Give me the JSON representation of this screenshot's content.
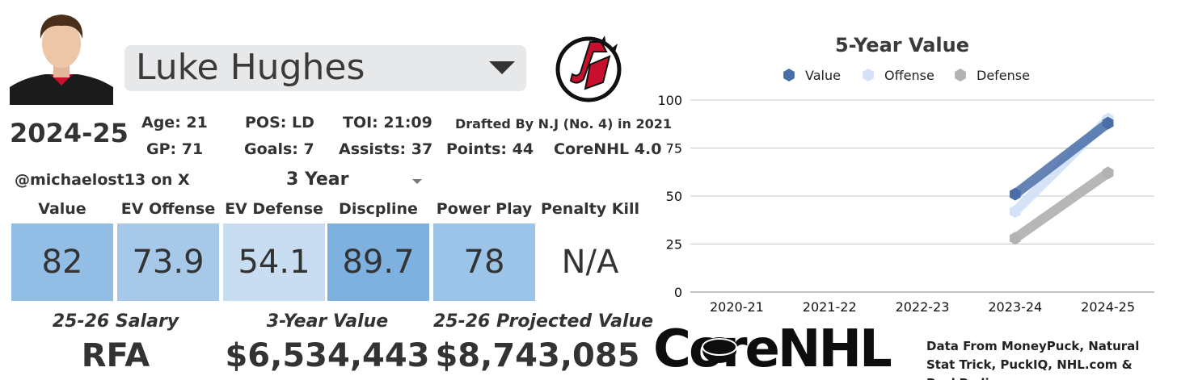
{
  "player": {
    "name": "Luke Hughes",
    "season": "2024-25",
    "handle": "@michaelost13 on X"
  },
  "stats": {
    "age": "Age: 21",
    "pos": "POS: LD",
    "toi": "TOI: 21:09",
    "drafted": "Drafted By N.J (No. 4) in 2021",
    "gp": "GP: 71",
    "goals": "Goals: 7",
    "assists": "Assists: 37",
    "points": "Points: 44",
    "version": "CoreNHL 4.0"
  },
  "window": {
    "label": "3 Year"
  },
  "metrics": [
    {
      "label": "Value",
      "value": "82",
      "color": "#92bde4"
    },
    {
      "label": "EV Offense",
      "value": "73.9",
      "color": "#a6c9ea"
    },
    {
      "label": "EV Defense",
      "value": "54.1",
      "color": "#c9ddf2"
    },
    {
      "label": "Discpline",
      "value": "89.7",
      "color": "#7eb1df"
    },
    {
      "label": "Power Play",
      "value": "78",
      "color": "#9cc3e8"
    },
    {
      "label": "Penalty Kill",
      "value": "N/A",
      "color": "#ffffff"
    }
  ],
  "footer": {
    "salary_label": "25-26 Salary",
    "salary_value": "RFA",
    "three_year_label": "3-Year Value",
    "three_year_value": "$6,534,443",
    "projected_label": "25-26 Projected Value",
    "projected_value": "$8,743,085"
  },
  "brand": {
    "name": "CoreNHL"
  },
  "credits": "Data From MoneyPuck, Natural Stat Trick, PuckIQ, NHL.com & PuckPedia",
  "chart_data": {
    "type": "line",
    "title": "5-Year Value",
    "categories": [
      "2020-21",
      "2021-22",
      "2022-23",
      "2023-24",
      "2024-25"
    ],
    "series": [
      {
        "name": "Value",
        "values": [
          null,
          null,
          null,
          51,
          88
        ],
        "color": "#4a6ea8"
      },
      {
        "name": "Offense",
        "values": [
          null,
          null,
          null,
          42,
          90
        ],
        "color": "#d4e1f7"
      },
      {
        "name": "Defense",
        "values": [
          null,
          null,
          null,
          28,
          62
        ],
        "color": "#b3b3b3"
      }
    ],
    "yticks": [
      0,
      25,
      50,
      75,
      100
    ],
    "ylim": [
      0,
      100
    ],
    "legend": "top-center",
    "grid": true
  }
}
